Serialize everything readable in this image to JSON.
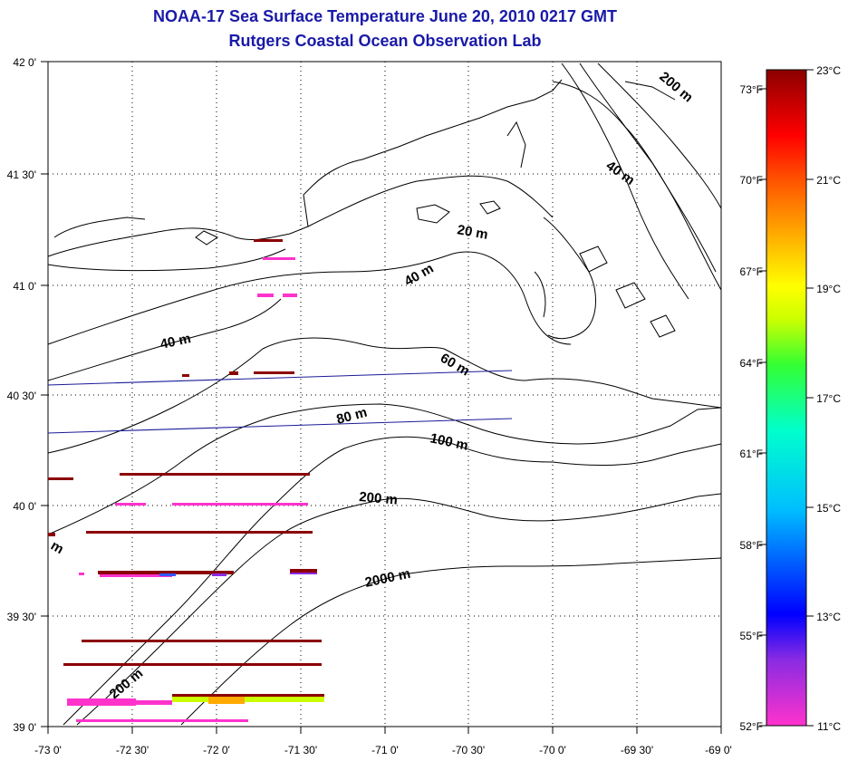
{
  "title": "NOAA-17 Sea Surface Temperature June 20, 2010 0217 GMT",
  "subtitle": "Rutgers Coastal Ocean Observation Lab",
  "map": {
    "lon_ticks": [
      "-73 0'",
      "-72 30'",
      "-72 0'",
      "-71 30'",
      "-71 0'",
      "-70 30'",
      "-70 0'",
      "-69 30'",
      "-69 0'"
    ],
    "lat_ticks": [
      "42 0'",
      "41 30'",
      "41 0'",
      "40 30'",
      "40 0'",
      "39 30'",
      "39 0'"
    ],
    "lon_range": [
      -73.0,
      -69.0
    ],
    "lat_range": [
      39.0,
      42.0
    ],
    "grid": true,
    "isobath_labels": [
      "20 m",
      "40 m",
      "40 m",
      "40 m",
      "60 m",
      "80 m",
      "100 m",
      "200 m",
      "2000 m",
      "200 m",
      "200 m",
      "m"
    ]
  },
  "colorbar": {
    "celsius_labels": [
      "23°C",
      "21°C",
      "19°C",
      "17°C",
      "15°C",
      "13°C",
      "11°C"
    ],
    "fahrenheit_labels": [
      "73°F",
      "70°F",
      "67°F",
      "64°F",
      "61°F",
      "58°F",
      "55°F",
      "52°F"
    ],
    "range_celsius": [
      11,
      23
    ],
    "colors": [
      "#ff33cc",
      "#8a2be2",
      "#0000ff",
      "#00bfff",
      "#00ffcc",
      "#33ff33",
      "#ccff00",
      "#ffff00",
      "#ffaa00",
      "#ff5500",
      "#ff0000",
      "#8b0000"
    ]
  }
}
